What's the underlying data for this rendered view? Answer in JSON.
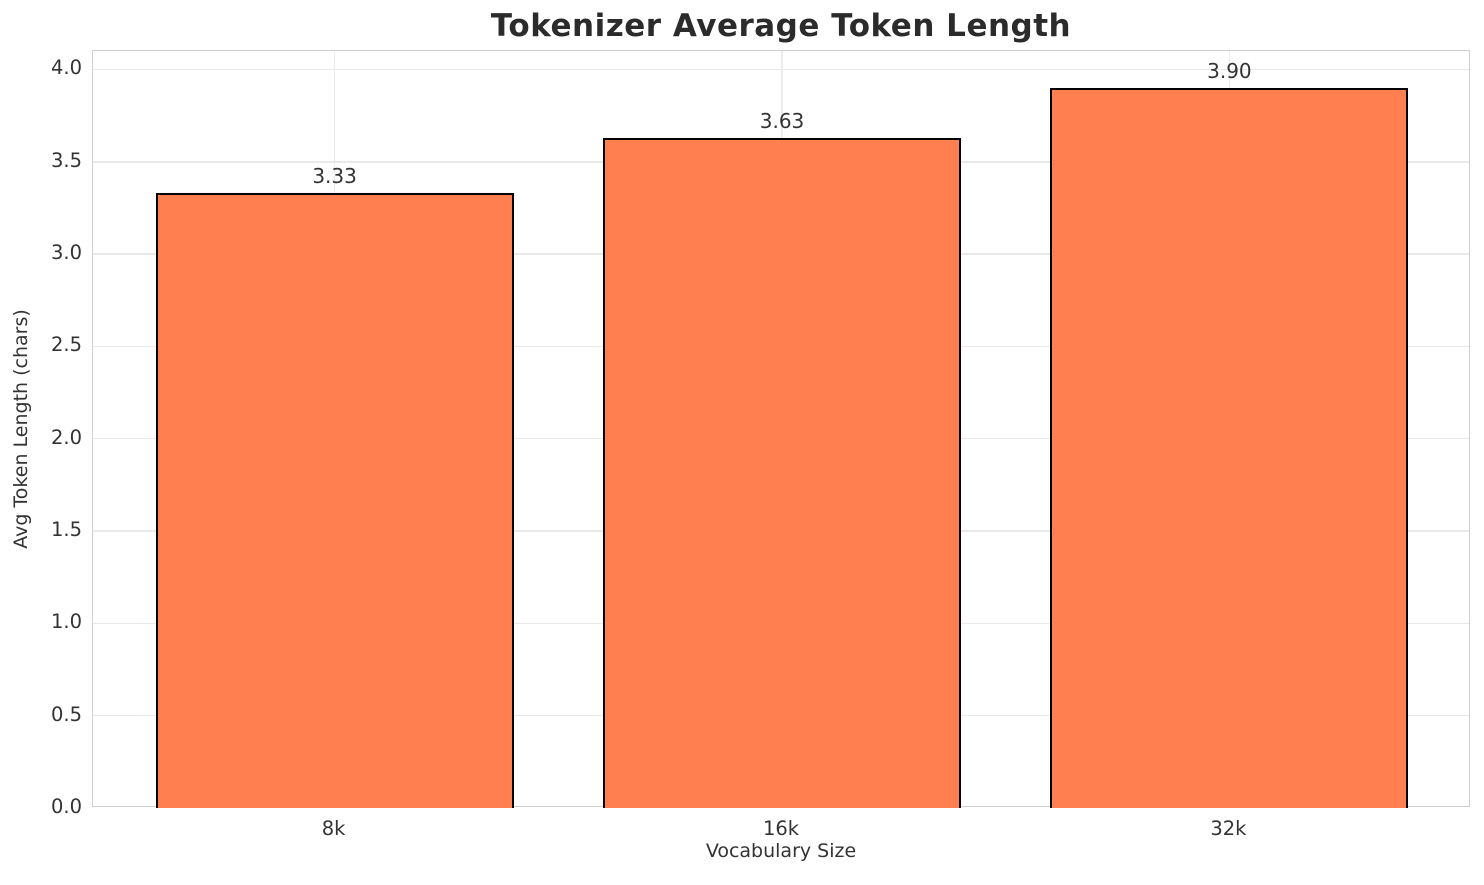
{
  "chart_data": {
    "type": "bar",
    "title": "Tokenizer Average Token Length",
    "xlabel": "Vocabulary Size",
    "ylabel": "Avg Token Length (chars)",
    "categories": [
      "8k",
      "16k",
      "32k"
    ],
    "values": [
      3.33,
      3.63,
      3.9
    ],
    "value_labels": [
      "3.33",
      "3.63",
      "3.90"
    ],
    "ytick_labels": [
      "0.0",
      "0.5",
      "1.0",
      "1.5",
      "2.0",
      "2.5",
      "3.0",
      "3.5",
      "4.0"
    ],
    "yticks": [
      0.0,
      0.5,
      1.0,
      1.5,
      2.0,
      2.5,
      3.0,
      3.5,
      4.0
    ],
    "ylim": [
      0,
      4.1
    ],
    "bar_width_ratio": 0.8,
    "grid": true,
    "legend_position": "none",
    "colors": {
      "bar_fill": "#FF7F50",
      "bar_edge": "#000000",
      "grid_h": "#e9e9e9",
      "grid_v": "#ececec",
      "spine": "#d0d0d0",
      "title_text": "#2b2b2b",
      "tick_text": "#333333"
    }
  }
}
